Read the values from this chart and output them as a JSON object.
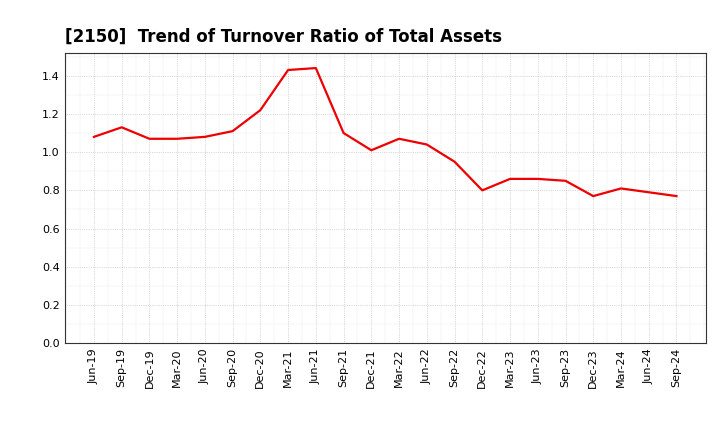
{
  "title": "[2150]  Trend of Turnover Ratio of Total Assets",
  "labels": [
    "Jun-19",
    "Sep-19",
    "Dec-19",
    "Mar-20",
    "Jun-20",
    "Sep-20",
    "Dec-20",
    "Mar-21",
    "Jun-21",
    "Sep-21",
    "Dec-21",
    "Mar-22",
    "Jun-22",
    "Sep-22",
    "Dec-22",
    "Mar-23",
    "Jun-23",
    "Sep-23",
    "Dec-23",
    "Mar-24",
    "Jun-24",
    "Sep-24"
  ],
  "values": [
    1.08,
    1.13,
    1.07,
    1.07,
    1.08,
    1.11,
    1.22,
    1.43,
    1.44,
    1.1,
    1.01,
    1.07,
    1.04,
    0.95,
    0.8,
    0.86,
    0.86,
    0.85,
    0.77,
    0.81,
    0.79,
    0.77
  ],
  "line_color": "#ee0000",
  "background_color": "#ffffff",
  "grid_color": "#999999",
  "ylim": [
    0.0,
    1.52
  ],
  "yticks": [
    0.0,
    0.2,
    0.4,
    0.6,
    0.8,
    1.0,
    1.2,
    1.4
  ],
  "title_fontsize": 12,
  "tick_fontsize": 8,
  "line_width": 1.6
}
